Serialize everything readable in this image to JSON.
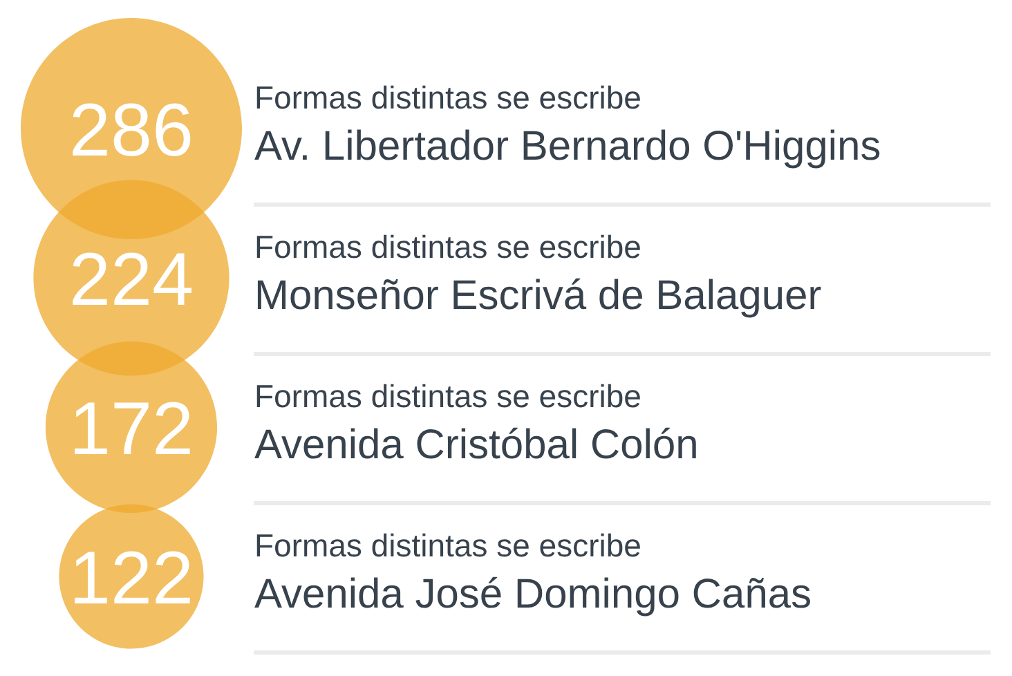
{
  "chart_data": {
    "type": "other",
    "categories": [
      "Av. Libertador Bernardo O'Higgins",
      "Monseñor Escrivá de Balaguer",
      "Avenida Cristóbal Colón",
      "Avenida José Domingo Cañas"
    ],
    "values": [
      286,
      224,
      172,
      122
    ],
    "color": "#f2bf62",
    "data_labels": true,
    "annotations": [
      "Formas distintas se escribe",
      "Formas distintas se escribe",
      "Formas distintas se escribe",
      "Formas distintas se escribe"
    ]
  }
}
